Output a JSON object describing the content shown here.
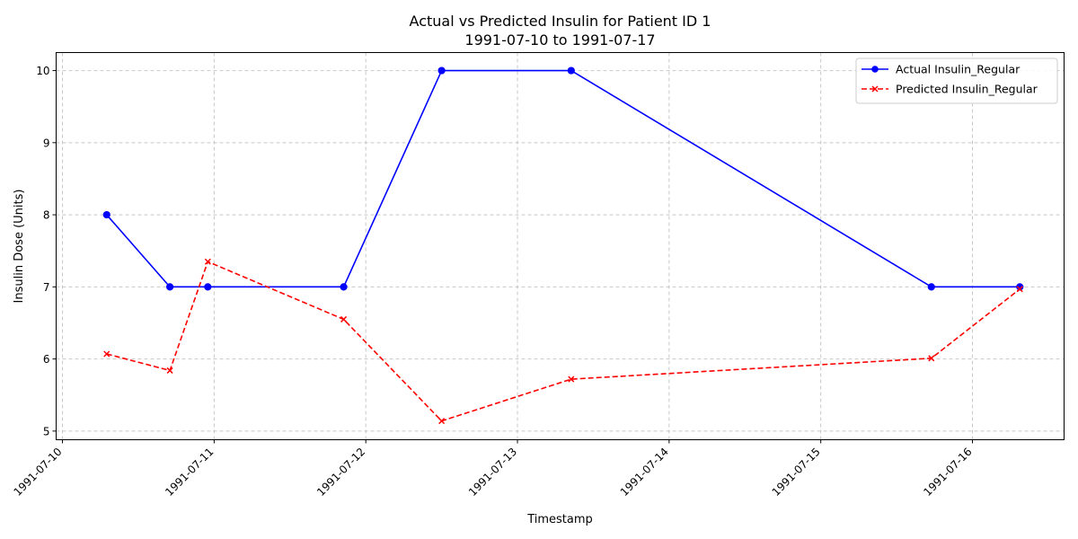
{
  "chart_data": {
    "type": "line",
    "title": "Actual vs Predicted Insulin for Patient ID 1",
    "subtitle": "1991-07-10 to 1991-07-17",
    "xlabel": "Timestamp",
    "ylabel": "Insulin Dose (Units)",
    "x_type": "datetime",
    "xlim": [
      "1991-07-09T23:00:00",
      "1991-07-16T14:30:00"
    ],
    "ylim": [
      4.88,
      10.25
    ],
    "x_ticks": [
      "1991-07-10",
      "1991-07-11",
      "1991-07-12",
      "1991-07-13",
      "1991-07-14",
      "1991-07-15",
      "1991-07-16"
    ],
    "y_ticks": [
      5,
      6,
      7,
      8,
      9,
      10
    ],
    "grid": true,
    "legend_position": "top-right",
    "series": [
      {
        "name": "Actual Insulin_Regular",
        "color": "#0000ff",
        "line_style": "solid",
        "marker": "circle",
        "points": [
          {
            "x": "1991-07-10T07:00:00",
            "y": 8
          },
          {
            "x": "1991-07-10T17:00:00",
            "y": 7
          },
          {
            "x": "1991-07-10T23:00:00",
            "y": 7
          },
          {
            "x": "1991-07-11T20:30:00",
            "y": 7
          },
          {
            "x": "1991-07-12T12:00:00",
            "y": 10
          },
          {
            "x": "1991-07-13T08:30:00",
            "y": 10
          },
          {
            "x": "1991-07-15T17:30:00",
            "y": 7
          },
          {
            "x": "1991-07-16T07:30:00",
            "y": 7
          }
        ]
      },
      {
        "name": "Predicted Insulin_Regular",
        "color": "#ff0000",
        "line_style": "dashed",
        "marker": "x",
        "points": [
          {
            "x": "1991-07-10T07:00:00",
            "y": 6.07
          },
          {
            "x": "1991-07-10T17:00:00",
            "y": 5.84
          },
          {
            "x": "1991-07-10T23:00:00",
            "y": 7.35
          },
          {
            "x": "1991-07-11T20:30:00",
            "y": 6.55
          },
          {
            "x": "1991-07-12T12:00:00",
            "y": 5.14
          },
          {
            "x": "1991-07-13T08:30:00",
            "y": 5.72
          },
          {
            "x": "1991-07-15T17:30:00",
            "y": 6.01
          },
          {
            "x": "1991-07-16T07:30:00",
            "y": 6.97
          }
        ]
      }
    ]
  }
}
